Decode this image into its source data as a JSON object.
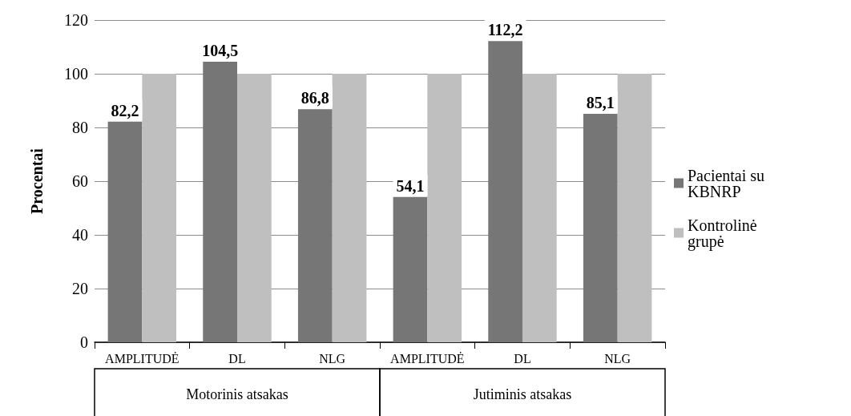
{
  "chart_data": {
    "type": "bar",
    "ylabel": "Procentai",
    "categories": [
      "AMPLITUDĖ",
      "DL",
      "NLG",
      "AMPLITUDĖ",
      "DL",
      "NLG"
    ],
    "series": [
      {
        "name": "Pacientai su KBNRP",
        "color": "#767676",
        "values": [
          82.2,
          104.5,
          86.8,
          54.1,
          112.2,
          85.1
        ],
        "value_labels": [
          "82,2",
          "104,5",
          "86,8",
          "54,1",
          "112,2",
          "85,1"
        ]
      },
      {
        "name": "Kontrolinė grupė",
        "color": "#bfbfbf",
        "values": [
          100,
          100,
          100,
          100,
          100,
          100
        ]
      }
    ],
    "annotations": [
      "Motorinis atsakas",
      "Jutiminis atsakas"
    ],
    "ylim": [
      0,
      120
    ],
    "yticks": [
      0,
      20,
      40,
      60,
      80,
      100,
      120
    ],
    "grid": "y",
    "legend": "right"
  }
}
